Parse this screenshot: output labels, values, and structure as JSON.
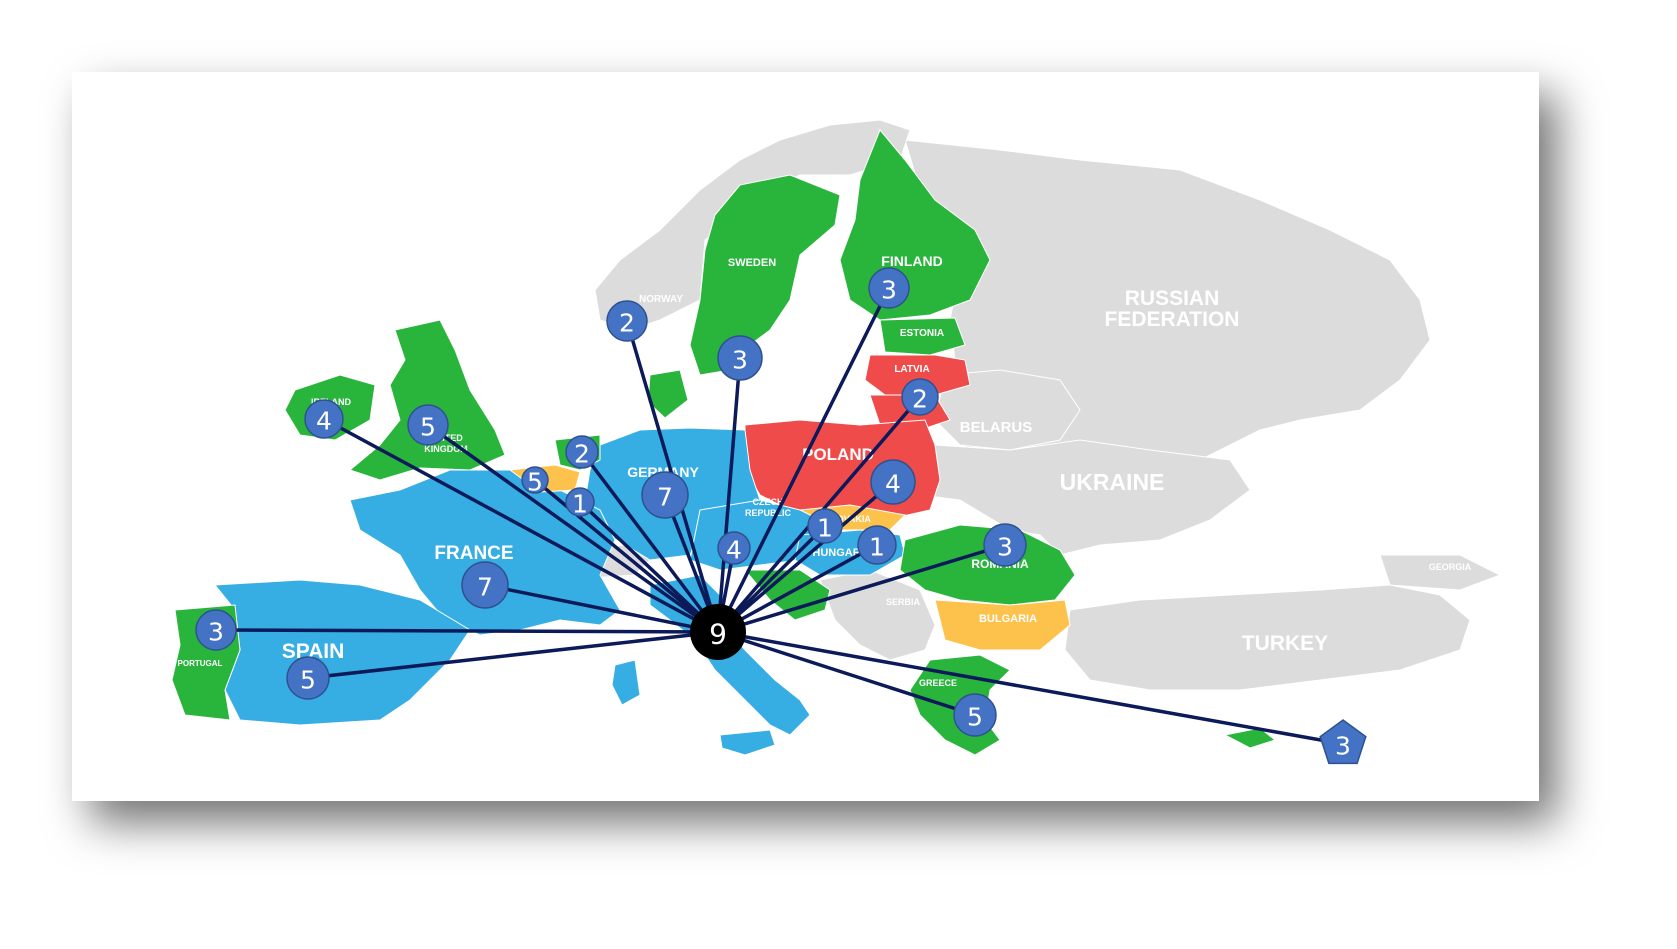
{
  "colors": {
    "blue": "#36ADE3",
    "green": "#29B53C",
    "red": "#F04B4B",
    "yellow": "#FDC24C",
    "grey": "#DCDCDC",
    "line": "#0D1A5A",
    "node_fill": "#4472C4",
    "hub_fill": "#000000"
  },
  "labels": {
    "russia_1": "RUSSIAN",
    "russia_2": "FEDERATION",
    "ukraine": "UKRAINE",
    "belarus": "BELARUS",
    "turkey": "TURKEY",
    "georgia": "GEORGIA",
    "sweden": "SWEDEN",
    "norway": "NORWAY",
    "finland": "FINLAND",
    "estonia": "ESTONIA",
    "latvia": "LATVIA",
    "poland": "POLAND",
    "germany": "GERMANY",
    "czech_1": "CZECH",
    "czech_2": "REPUBLIC",
    "slovakia": "SLOVAKIA",
    "hungary": "HUNGARY",
    "romania": "ROMANIA",
    "bulgaria": "BULGARIA",
    "serbia": "SERBIA",
    "greece": "GREECE",
    "france": "FRANCE",
    "spain": "SPAIN",
    "portugal": "PORTUGAL",
    "ireland": "IRELAND",
    "uk_1": "UNITED",
    "uk_2": "KINGDOM"
  },
  "hub": {
    "value": "9"
  },
  "nodes": [
    {
      "id": "norway",
      "value": "2"
    },
    {
      "id": "sweden",
      "value": "3"
    },
    {
      "id": "finland",
      "value": "3"
    },
    {
      "id": "latvia",
      "value": "2"
    },
    {
      "id": "poland",
      "value": "4"
    },
    {
      "id": "slovakia",
      "value": "1"
    },
    {
      "id": "hungary",
      "value": "1"
    },
    {
      "id": "romania",
      "value": "3"
    },
    {
      "id": "greece",
      "value": "5"
    },
    {
      "id": "cyprus",
      "value": "3"
    },
    {
      "id": "germany",
      "value": "7"
    },
    {
      "id": "austria",
      "value": "4"
    },
    {
      "id": "netherlands",
      "value": "2"
    },
    {
      "id": "belgium",
      "value": "5"
    },
    {
      "id": "luxembourg",
      "value": "1"
    },
    {
      "id": "uk",
      "value": "5"
    },
    {
      "id": "ireland",
      "value": "4"
    },
    {
      "id": "france",
      "value": "7"
    },
    {
      "id": "portugal",
      "value": "3"
    },
    {
      "id": "spain",
      "value": "5"
    }
  ]
}
